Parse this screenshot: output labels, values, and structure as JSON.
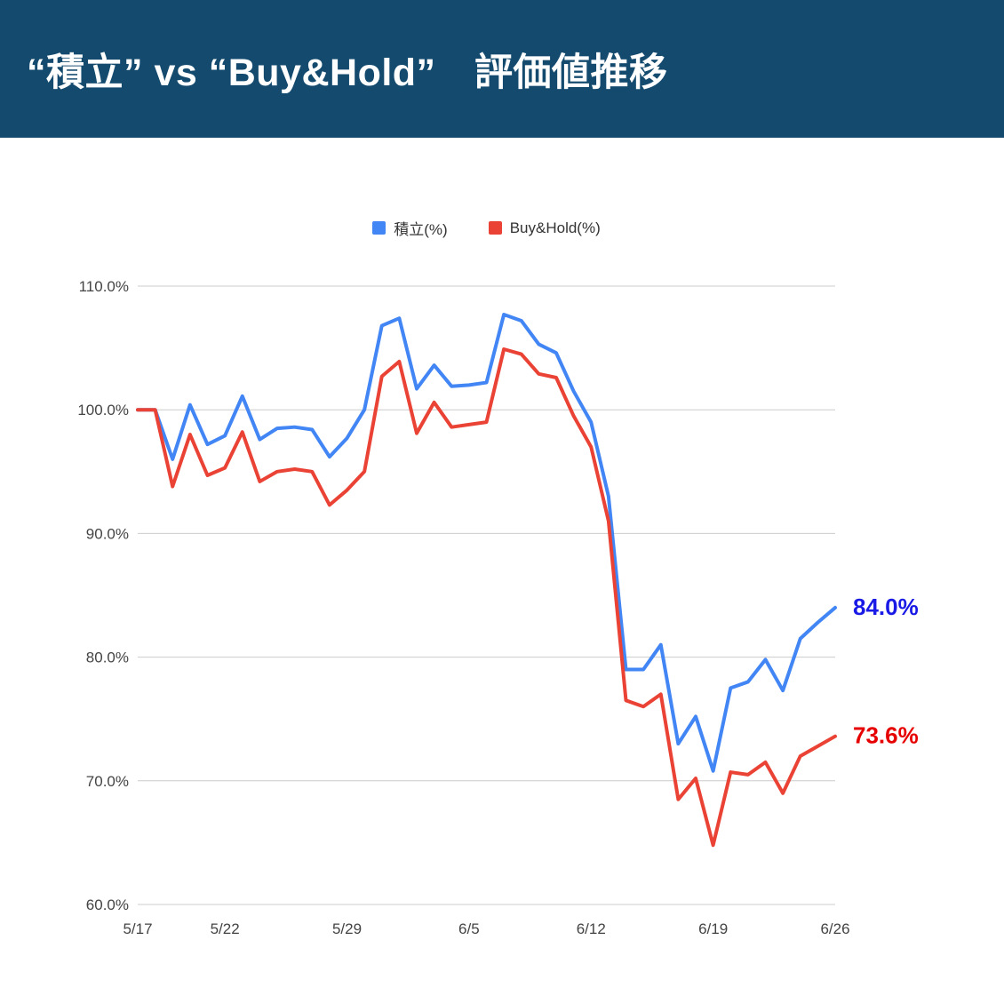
{
  "header": {
    "title": "“積立” vs “Buy&Hold”　評価値推移",
    "bg_color": "#134a6e"
  },
  "chart_data": {
    "type": "line",
    "title": "“積立” vs “Buy&Hold”　評価値推移",
    "grid": true,
    "grid_color": "#cccccc",
    "legend_position": "top",
    "x_axis": {
      "tick_positions": [
        0,
        5,
        12,
        19,
        26,
        33,
        40
      ],
      "tick_labels": [
        "5/17",
        "5/22",
        "5/29",
        "6/5",
        "6/12",
        "6/19",
        "6/26"
      ]
    },
    "y_axis": {
      "min": 60,
      "max": 110,
      "tick_values": [
        60,
        70,
        80,
        90,
        100,
        110
      ],
      "tick_labels": [
        "60.0%",
        "70.0%",
        "80.0%",
        "90.0%",
        "100.0%",
        "110.0%"
      ]
    },
    "series": [
      {
        "name": "積立(%)",
        "color": "#4285f4",
        "values": [
          100.0,
          100.0,
          96.0,
          100.4,
          97.2,
          97.9,
          101.1,
          97.6,
          98.5,
          98.6,
          98.4,
          96.2,
          97.7,
          100.0,
          106.8,
          107.4,
          101.7,
          103.6,
          101.9,
          102.0,
          102.2,
          107.7,
          107.2,
          105.3,
          104.6,
          101.5,
          99.0,
          93.0,
          79.0,
          79.0,
          81.0,
          73.0,
          75.2,
          70.8,
          77.5,
          78.0,
          79.8,
          77.3,
          81.5,
          82.8,
          84.0
        ],
        "end_label": {
          "text": "84.0%",
          "color": "#1a1ae6"
        }
      },
      {
        "name": "Buy&Hold(%)",
        "color": "#ea4335",
        "values": [
          100.0,
          100.0,
          93.8,
          98.0,
          94.7,
          95.3,
          98.2,
          94.2,
          95.0,
          95.2,
          95.0,
          92.3,
          93.5,
          95.0,
          102.7,
          103.9,
          98.1,
          100.6,
          98.6,
          98.8,
          99.0,
          104.9,
          104.5,
          102.9,
          102.6,
          99.5,
          97.0,
          91.0,
          76.5,
          76.0,
          77.0,
          68.5,
          70.2,
          64.8,
          70.7,
          70.5,
          71.5,
          69.0,
          72.0,
          72.8,
          73.6
        ],
        "end_label": {
          "text": "73.6%",
          "color": "#e60000"
        }
      }
    ]
  }
}
